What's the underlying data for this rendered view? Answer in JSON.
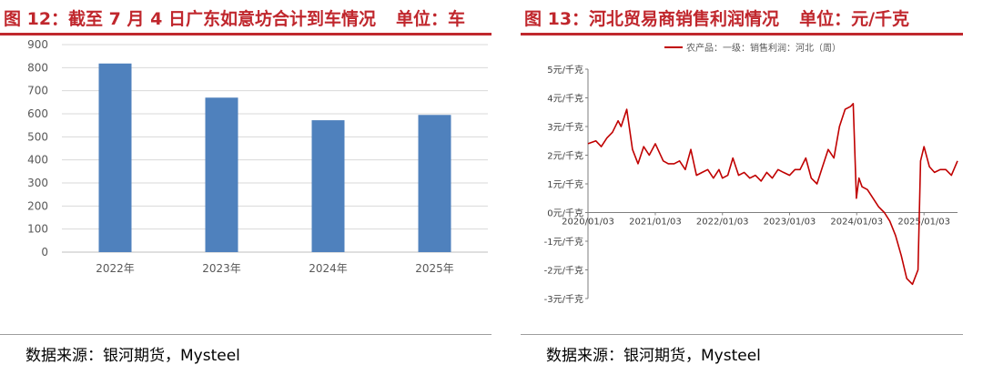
{
  "left": {
    "title": "图 12：截至 7 月 4 日广东如意坊合计到车情况",
    "unit": "单位：车",
    "source": "数据来源：银河期货，Mysteel"
  },
  "right": {
    "title": "图 13：河北贸易商销售利润情况",
    "unit": "单位：元/千克",
    "source": "数据来源：银河期货，Mysteel"
  },
  "colors": {
    "accent": "#c0272d",
    "bar": "#4f81bd",
    "line": "#c00000"
  },
  "chart_data": [
    {
      "type": "bar",
      "categories": [
        "2022年",
        "2023年",
        "2024年",
        "2025年"
      ],
      "values": [
        818,
        670,
        572,
        595
      ],
      "ylim": [
        0,
        900
      ],
      "yticks": [
        0,
        100,
        200,
        300,
        400,
        500,
        600,
        700,
        800,
        900
      ],
      "grid": true,
      "legend": "none"
    },
    {
      "type": "line",
      "series": [
        {
          "name": "农产品：一级：销售利润：河北（周）",
          "x": [
            "2020-01-03",
            "2020-02-15",
            "2020-03-15",
            "2020-04-15",
            "2020-05-15",
            "2020-06-15",
            "2020-07-01",
            "2020-08-01",
            "2020-09-01",
            "2020-10-01",
            "2020-11-01",
            "2020-12-01",
            "2021-01-03",
            "2021-02-15",
            "2021-03-15",
            "2021-04-15",
            "2021-05-15",
            "2021-06-15",
            "2021-07-15",
            "2021-08-15",
            "2021-09-15",
            "2021-10-15",
            "2021-11-15",
            "2021-12-15",
            "2022-01-03",
            "2022-02-01",
            "2022-03-01",
            "2022-04-01",
            "2022-05-01",
            "2022-06-01",
            "2022-07-01",
            "2022-08-01",
            "2022-09-01",
            "2022-10-01",
            "2022-11-01",
            "2022-12-01",
            "2023-01-03",
            "2023-02-01",
            "2023-03-01",
            "2023-04-01",
            "2023-05-01",
            "2023-06-01",
            "2023-07-01",
            "2023-08-01",
            "2023-09-01",
            "2023-10-01",
            "2023-11-01",
            "2023-12-01",
            "2023-12-15",
            "2024-01-01",
            "2024-01-15",
            "2024-02-01",
            "2024-03-01",
            "2024-04-01",
            "2024-05-01",
            "2024-06-01",
            "2024-07-01",
            "2024-08-01",
            "2024-09-01",
            "2024-10-01",
            "2024-11-01",
            "2024-12-01",
            "2024-12-15",
            "2025-01-03",
            "2025-02-01",
            "2025-03-01",
            "2025-04-01",
            "2025-05-01",
            "2025-06-01",
            "2025-07-04"
          ],
          "values": [
            2.4,
            2.5,
            2.3,
            2.6,
            2.8,
            3.2,
            3.0,
            3.6,
            2.2,
            1.7,
            2.3,
            2.0,
            2.4,
            1.8,
            1.7,
            1.7,
            1.8,
            1.5,
            2.2,
            1.3,
            1.4,
            1.5,
            1.2,
            1.5,
            1.2,
            1.3,
            1.9,
            1.3,
            1.4,
            1.2,
            1.3,
            1.1,
            1.4,
            1.2,
            1.5,
            1.4,
            1.3,
            1.5,
            1.5,
            1.9,
            1.2,
            1.0,
            1.6,
            2.2,
            1.9,
            3.0,
            3.6,
            3.7,
            3.8,
            0.5,
            1.2,
            0.9,
            0.8,
            0.5,
            0.2,
            0.0,
            -0.3,
            -0.8,
            -1.5,
            -2.3,
            -2.5,
            -2.0,
            1.8,
            2.3,
            1.6,
            1.4,
            1.5,
            1.5,
            1.3,
            1.8
          ]
        }
      ],
      "ylim": [
        -3,
        5
      ],
      "yticks": [
        -3,
        -2,
        -1,
        0,
        1,
        2,
        3,
        4,
        5
      ],
      "ytick_labels": [
        "-3元/千克",
        "-2元/千克",
        "-1元/千克",
        "0元/千克",
        "1元/千克",
        "2元/千克",
        "3元/千克",
        "4元/千克",
        "5元/千克"
      ],
      "xtick_labels": [
        "2020/01/03",
        "2021/01/03",
        "2022/01/03",
        "2023/01/03",
        "2024/01/03",
        "2025/01/03"
      ],
      "xrange": [
        "2020-01-03",
        "2025-07-04"
      ],
      "legend": "top-center",
      "grid": false
    }
  ]
}
